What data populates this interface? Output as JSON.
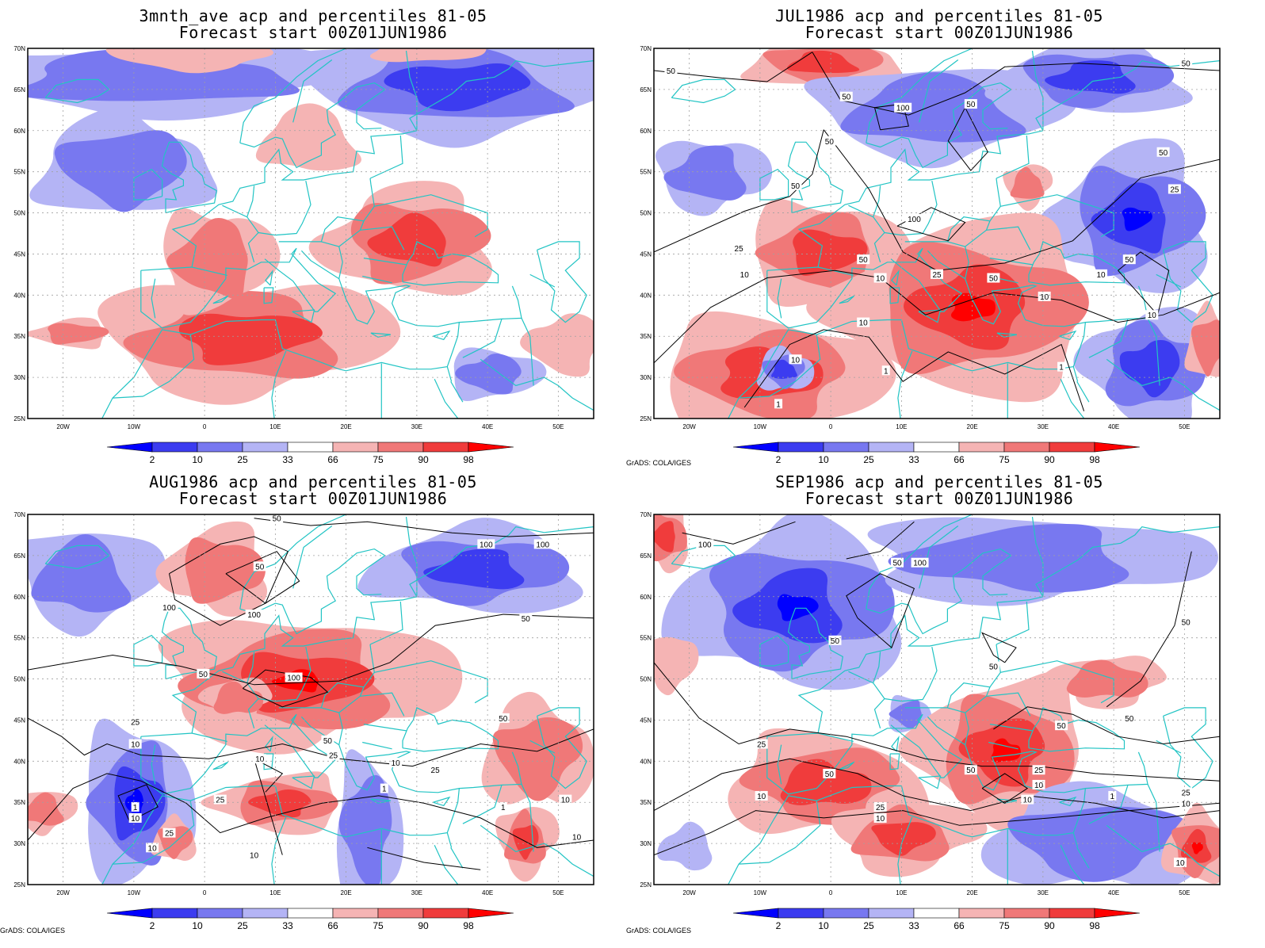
{
  "panels": [
    {
      "title_line1": "3mnth_ave acp and percentiles 81-05",
      "title_line2": "Forecast start 00Z01JUN1986",
      "credit": ""
    },
    {
      "title_line1": "JUL1986 acp and percentiles 81-05",
      "title_line2": "Forecast start 00Z01JUN1986",
      "credit": "GrADS: COLA/IGES"
    },
    {
      "title_line1": "AUG1986 acp and percentiles 81-05",
      "title_line2": "Forecast start 00Z01JUN1986",
      "credit": "GrADS: COLA/IGES"
    },
    {
      "title_line1": "SEP1986 acp and percentiles 81-05",
      "title_line2": "Forecast start 00Z01JUN1986",
      "credit": "GrADS: COLA/IGES"
    }
  ],
  "map": {
    "lat_labels": [
      "70N",
      "65N",
      "60N",
      "55N",
      "50N",
      "45N",
      "40N",
      "35N",
      "30N",
      "25N"
    ],
    "lon_labels": [
      "20W",
      "10W",
      "0",
      "10E",
      "20E",
      "30E",
      "40E",
      "50E"
    ],
    "lon_range": [
      -25,
      55
    ],
    "lat_range": [
      25,
      70
    ]
  },
  "legend": {
    "labels": [
      "2",
      "10",
      "25",
      "33",
      "66",
      "75",
      "90",
      "98"
    ],
    "colors": [
      "#0000ff",
      "#3c3cf0",
      "#7878f0",
      "#b4b4f5",
      "#ffffff",
      "#f5b4b4",
      "#f07878",
      "#f03c3c",
      "#ff0000"
    ]
  },
  "contour_labels": {
    "p1": [
      "50",
      "50",
      "100",
      "50",
      "50",
      "50",
      "50",
      "100",
      "25",
      "50",
      "50",
      "25",
      "25",
      "50",
      "10",
      "10",
      "50",
      "10",
      "10",
      "10",
      "10",
      "10",
      "1",
      "1",
      "1"
    ],
    "p2": [
      "50",
      "50",
      "100",
      "100",
      "100",
      "100",
      "50",
      "100",
      "50",
      "25",
      "10",
      "10",
      "50",
      "25",
      "10",
      "50",
      "25",
      "1",
      "25",
      "1",
      "10",
      "10",
      "25",
      "1",
      "10",
      "10",
      "10"
    ],
    "p3": [
      "100",
      "100",
      "50",
      "50",
      "50",
      "50",
      "50",
      "50",
      "25",
      "10",
      "50",
      "50",
      "25",
      "10",
      "25",
      "10",
      "10",
      "25",
      "10",
      "1",
      "10"
    ]
  },
  "colors": {
    "coast": "#22c4c4",
    "contour": "#000000"
  }
}
